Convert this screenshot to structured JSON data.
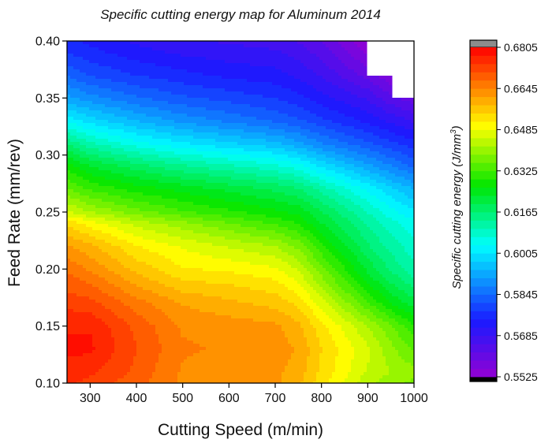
{
  "chart_data": {
    "type": "heatmap",
    "subtype": "filled-contour",
    "title": "Specific cutting energy map for Aluminum 2014",
    "xlabel": "Cutting Speed (m/min)",
    "ylabel": "Feed Rate (mm/rev)",
    "xlim": [
      250,
      1000
    ],
    "ylim": [
      0.1,
      0.4
    ],
    "x_ticks": [
      300,
      400,
      500,
      600,
      700,
      800,
      900,
      1000
    ],
    "x_tick_labels": [
      "300",
      "400",
      "500",
      "600",
      "700",
      "800",
      "900",
      "1000"
    ],
    "y_ticks": [
      0.1,
      0.15,
      0.2,
      0.25,
      0.3,
      0.35,
      0.4
    ],
    "y_tick_labels": [
      "0.10",
      "0.15",
      "0.20",
      "0.25",
      "0.30",
      "0.35",
      "0.40"
    ],
    "colorbar": {
      "label": "Specific cutting energy (J/mm³)",
      "label_main": "Specific cutting energy (J/mm",
      "label_sup": "3",
      "label_tail": ")",
      "min": 0.5525,
      "max": 0.6805,
      "levels": 40,
      "ticks": [
        "0.6805",
        "0.6645",
        "0.6485",
        "0.6325",
        "0.6165",
        "0.6005",
        "0.5845",
        "0.5685",
        "0.5525"
      ],
      "colors": {
        "min_band": "#9400d3",
        "blue": "#1a1aff",
        "cyan": "#00ffff",
        "green": "#00e600",
        "yellow": "#ffff00",
        "red": "#ff0000",
        "over_cap": "#8c8c8c",
        "under_cap": "#000000"
      }
    },
    "grid_x": [
      250,
      300,
      400,
      500,
      600,
      700,
      750,
      800,
      900,
      950,
      1000
    ],
    "grid_y": [
      0.1,
      0.11,
      0.13,
      0.15,
      0.17,
      0.19,
      0.2,
      0.22,
      0.24,
      0.25,
      0.27,
      0.29,
      0.31,
      0.33,
      0.35,
      0.37,
      0.39,
      0.4
    ],
    "z": [
      [
        0.675,
        0.673,
        0.669,
        0.664,
        0.663,
        0.662,
        0.659,
        0.653,
        0.643,
        0.64,
        0.638
      ],
      [
        0.676,
        0.675,
        0.67,
        0.664,
        0.663,
        0.662,
        0.66,
        0.654,
        0.645,
        0.642,
        0.64
      ],
      [
        0.678,
        0.678,
        0.671,
        0.665,
        0.664,
        0.663,
        0.661,
        0.655,
        0.646,
        0.64,
        0.635
      ],
      [
        0.677,
        0.677,
        0.67,
        0.664,
        0.663,
        0.662,
        0.659,
        0.653,
        0.642,
        0.636,
        0.63
      ],
      [
        0.673,
        0.672,
        0.666,
        0.661,
        0.659,
        0.657,
        0.654,
        0.647,
        0.633,
        0.626,
        0.621
      ],
      [
        0.669,
        0.667,
        0.66,
        0.655,
        0.654,
        0.652,
        0.648,
        0.64,
        0.625,
        0.619,
        0.614
      ],
      [
        0.667,
        0.664,
        0.657,
        0.652,
        0.651,
        0.649,
        0.645,
        0.637,
        0.622,
        0.616,
        0.611
      ],
      [
        0.662,
        0.659,
        0.652,
        0.648,
        0.645,
        0.642,
        0.638,
        0.63,
        0.617,
        0.612,
        0.608
      ],
      [
        0.654,
        0.65,
        0.644,
        0.64,
        0.636,
        0.632,
        0.629,
        0.623,
        0.613,
        0.608,
        0.605
      ],
      [
        0.646,
        0.642,
        0.637,
        0.633,
        0.63,
        0.627,
        0.625,
        0.62,
        0.61,
        0.605,
        0.601
      ],
      [
        0.636,
        0.632,
        0.628,
        0.625,
        0.622,
        0.619,
        0.617,
        0.612,
        0.603,
        0.598,
        0.594
      ],
      [
        0.628,
        0.623,
        0.618,
        0.614,
        0.611,
        0.608,
        0.605,
        0.6,
        0.592,
        0.588,
        0.584
      ],
      [
        0.616,
        0.611,
        0.605,
        0.601,
        0.598,
        0.595,
        0.592,
        0.588,
        0.582,
        0.579,
        0.576
      ],
      [
        0.603,
        0.599,
        0.594,
        0.59,
        0.587,
        0.584,
        0.582,
        0.579,
        0.574,
        0.571,
        0.568
      ],
      [
        0.592,
        0.589,
        0.585,
        0.582,
        0.58,
        0.578,
        0.576,
        0.573,
        0.568,
        0.563,
        0.56
      ],
      [
        0.584,
        0.581,
        0.578,
        0.576,
        0.574,
        0.573,
        0.571,
        0.568,
        0.561,
        0.556,
        null
      ],
      [
        0.578,
        0.576,
        0.573,
        0.571,
        0.57,
        0.569,
        0.567,
        0.564,
        0.555,
        null,
        null
      ],
      [
        0.576,
        0.574,
        0.571,
        0.569,
        0.568,
        0.567,
        0.565,
        0.562,
        0.553,
        null,
        null
      ]
    ]
  }
}
